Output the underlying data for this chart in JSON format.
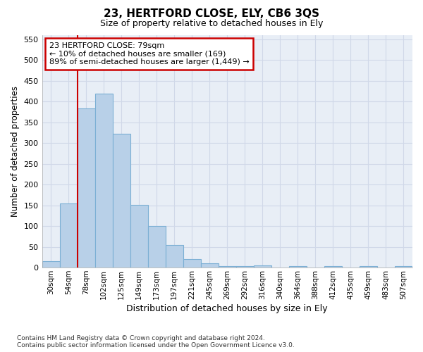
{
  "title": "23, HERTFORD CLOSE, ELY, CB6 3QS",
  "subtitle": "Size of property relative to detached houses in Ely",
  "xlabel": "Distribution of detached houses by size in Ely",
  "ylabel": "Number of detached properties",
  "footnote1": "Contains HM Land Registry data © Crown copyright and database right 2024.",
  "footnote2": "Contains public sector information licensed under the Open Government Licence v3.0.",
  "categories": [
    "30sqm",
    "54sqm",
    "78sqm",
    "102sqm",
    "125sqm",
    "149sqm",
    "173sqm",
    "197sqm",
    "221sqm",
    "245sqm",
    "269sqm",
    "292sqm",
    "316sqm",
    "340sqm",
    "364sqm",
    "388sqm",
    "412sqm",
    "435sqm",
    "459sqm",
    "483sqm",
    "507sqm"
  ],
  "values": [
    15,
    155,
    383,
    420,
    322,
    152,
    100,
    55,
    21,
    10,
    3,
    3,
    5,
    0,
    3,
    0,
    3,
    0,
    3,
    0,
    3
  ],
  "bar_color": "#b8d0e8",
  "bar_edge_color": "#7bafd4",
  "vline_x": 2,
  "vline_color": "#cc0000",
  "annotation_line1": "23 HERTFORD CLOSE: 79sqm",
  "annotation_line2": "← 10% of detached houses are smaller (169)",
  "annotation_line3": "89% of semi-detached houses are larger (1,449) →",
  "annotation_box_color": "#ffffff",
  "annotation_box_edge_color": "#cc0000",
  "ylim": [
    0,
    560
  ],
  "yticks": [
    0,
    50,
    100,
    150,
    200,
    250,
    300,
    350,
    400,
    450,
    500,
    550
  ],
  "grid_color": "#d0d8e8",
  "background_color": "#ffffff",
  "plot_bg_color": "#e8eef6"
}
